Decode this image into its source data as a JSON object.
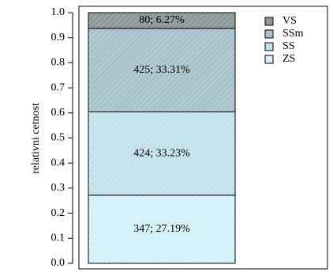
{
  "chart_data": {
    "type": "stacked-bar",
    "y_label": "relativni cetnost",
    "categories": [
      null
    ],
    "series": [
      {
        "name": "ZS",
        "color": "#d3f1f9",
        "values": [
          0.2719
        ],
        "value_labels": [
          "347; 27.19%"
        ]
      },
      {
        "name": "SS",
        "color": "#c2e2ec",
        "values": [
          0.3323
        ],
        "value_labels": [
          "424; 33.23%"
        ]
      },
      {
        "name": "SSm",
        "color": "#a8c4ca",
        "values": [
          0.3331
        ],
        "value_labels": [
          "425; 33.31%"
        ]
      },
      {
        "name": "VS",
        "color": "#8c9a9c",
        "values": [
          0.0627
        ],
        "value_labels": [
          "80; 6.27%"
        ]
      }
    ],
    "ylim": [
      0,
      1
    ],
    "yticks": [
      {
        "value": 0,
        "label": "0.0"
      },
      0.1,
      0.2,
      0.3,
      0.4,
      0.5,
      0.6,
      0.7,
      0.8,
      0.9,
      {
        "value": 1,
        "label": "1.0"
      }
    ],
    "legend": "top-right"
  }
}
